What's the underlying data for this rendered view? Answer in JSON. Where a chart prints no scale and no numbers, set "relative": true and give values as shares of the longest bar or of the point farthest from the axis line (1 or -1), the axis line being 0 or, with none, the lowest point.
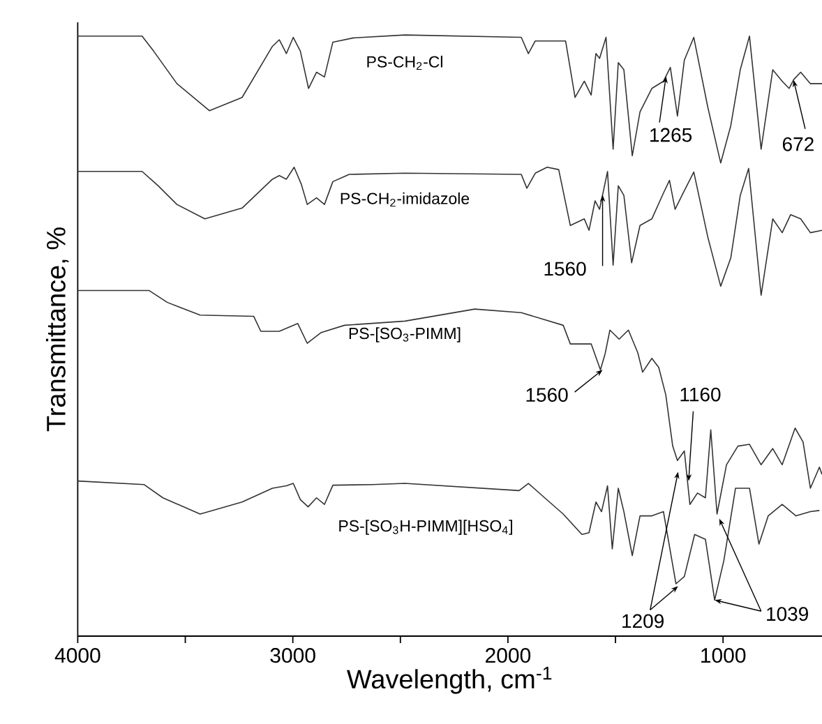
{
  "chart_data": {
    "type": "line",
    "relative": true,
    "xlabel": "Wavelength, cm$^{-1}$",
    "ylabel": "Transmittance, %",
    "xlim": [
      4000,
      540
    ],
    "xticks": [
      4000,
      {
        "value": 3500,
        "label": null
      },
      3000,
      {
        "value": 2500,
        "label": null
      },
      2000,
      {
        "value": 1500,
        "label": null
      },
      1000
    ],
    "series": [
      {
        "name": "PS-CH$_{2}$-Cl",
        "color": "#333333",
        "x": [
          4000,
          3701,
          3647,
          3539,
          3388,
          3236,
          3095,
          3063,
          3030,
          2998,
          2965,
          2927,
          2890,
          2853,
          2814,
          2719,
          2479,
          1938,
          1905,
          1873,
          1732,
          1688,
          1645,
          1613,
          1591,
          1574,
          1544,
          1511,
          1487,
          1461,
          1422,
          1386,
          1331,
          1277,
          1245,
          1212,
          1180,
          1136,
          1071,
          1011,
          964,
          920,
          877,
          823,
          769,
          725,
          693,
          671,
          639,
          594,
          540
        ],
        "values": [
          0.998,
          0.998,
          0.973,
          0.919,
          0.874,
          0.896,
          0.981,
          0.992,
          0.969,
          0.996,
          0.973,
          0.911,
          0.938,
          0.93,
          0.988,
          0.995,
          1.0,
          0.996,
          0.969,
          0.99,
          0.99,
          0.896,
          0.923,
          0.9,
          0.969,
          0.961,
          0.996,
          0.81,
          0.954,
          0.942,
          0.799,
          0.872,
          0.911,
          0.923,
          0.946,
          0.865,
          0.958,
          0.996,
          0.88,
          0.787,
          0.849,
          0.942,
          0.998,
          0.81,
          0.942,
          0.923,
          0.911,
          0.926,
          0.938,
          0.919,
          0.919
        ]
      },
      {
        "name": "PS-CH$_{2}$-imidazole",
        "color": "#333333",
        "x": [
          4000,
          3701,
          3626,
          3539,
          3409,
          3236,
          3095,
          3063,
          3030,
          2994,
          2961,
          2933,
          2890,
          2853,
          2814,
          2738,
          2479,
          1938,
          1912,
          1873,
          1818,
          1764,
          1710,
          1645,
          1623,
          1595,
          1574,
          1537,
          1511,
          1487,
          1461,
          1425,
          1386,
          1331,
          1277,
          1249,
          1223,
          1191,
          1136,
          1071,
          1011,
          964,
          920,
          881,
          823,
          769,
          725,
          686,
          639,
          594,
          540
        ],
        "values": [
          0.773,
          0.773,
          0.749,
          0.718,
          0.694,
          0.712,
          0.76,
          0.766,
          0.76,
          0.78,
          0.752,
          0.718,
          0.729,
          0.718,
          0.756,
          0.768,
          0.77,
          0.768,
          0.745,
          0.77,
          0.78,
          0.776,
          0.683,
          0.694,
          0.675,
          0.724,
          0.71,
          0.773,
          0.617,
          0.749,
          0.733,
          0.621,
          0.683,
          0.694,
          0.737,
          0.758,
          0.71,
          0.733,
          0.772,
          0.664,
          0.582,
          0.629,
          0.733,
          0.778,
          0.567,
          0.694,
          0.671,
          0.701,
          0.694,
          0.671,
          0.675
        ]
      },
      {
        "name": "PS-[SO$_{3}$-PIMM]",
        "color": "#333333",
        "x": [
          4000,
          3669,
          3583,
          3431,
          3182,
          3149,
          3063,
          2977,
          2933,
          2868,
          2760,
          2479,
          2154,
          1938,
          1743,
          1710,
          1613,
          1570,
          1548,
          1526,
          1483,
          1440,
          1396,
          1374,
          1331,
          1299,
          1266,
          1234,
          1212,
          1180,
          1154,
          1119,
          1082,
          1057,
          1028,
          984,
          931,
          877,
          823,
          769,
          725,
          665,
          628,
          594,
          552,
          540
        ],
        "values": [
          0.575,
          0.575,
          0.555,
          0.534,
          0.532,
          0.507,
          0.507,
          0.52,
          0.487,
          0.505,
          0.517,
          0.524,
          0.544,
          0.538,
          0.517,
          0.486,
          0.486,
          0.443,
          0.47,
          0.509,
          0.494,
          0.509,
          0.471,
          0.439,
          0.462,
          0.447,
          0.401,
          0.316,
          0.292,
          0.308,
          0.219,
          0.238,
          0.23,
          0.343,
          0.203,
          0.285,
          0.316,
          0.319,
          0.285,
          0.312,
          0.285,
          0.346,
          0.323,
          0.246,
          0.281,
          0.269
        ]
      },
      {
        "name": "PS-[SO$_{3}$H-PIMM][HSO$_{4}$]",
        "color": "#333333",
        "x": [
          4000,
          3691,
          3604,
          3431,
          3236,
          3095,
          3030,
          2998,
          2965,
          2929,
          2890,
          2853,
          2814,
          2630,
          2479,
          1948,
          1905,
          1829,
          1743,
          1656,
          1623,
          1591,
          1565,
          1537,
          1515,
          1487,
          1461,
          1422,
          1386,
          1331,
          1277,
          1219,
          1180,
          1132,
          1082,
          1039,
          996,
          942,
          877,
          833,
          790,
          725,
          661,
          594,
          552
        ],
        "values": [
          0.258,
          0.252,
          0.23,
          0.203,
          0.223,
          0.246,
          0.25,
          0.254,
          0.227,
          0.215,
          0.23,
          0.219,
          0.251,
          0.252,
          0.254,
          0.242,
          0.254,
          0.23,
          0.203,
          0.169,
          0.172,
          0.223,
          0.207,
          0.25,
          0.145,
          0.246,
          0.207,
          0.134,
          0.2,
          0.2,
          0.207,
          0.087,
          0.099,
          0.169,
          0.161,
          0.06,
          0.126,
          0.246,
          0.246,
          0.153,
          0.2,
          0.219,
          0.2,
          0.207,
          0.209
        ]
      }
    ],
    "annotations": [
      {
        "text": "1265",
        "x": 1265,
        "y": 0.931
      },
      {
        "text": "672",
        "x": 672,
        "y": 0.925
      },
      {
        "text": "1560",
        "x": 1560,
        "y": 0.734
      },
      {
        "text": "1560",
        "x": 1560,
        "y": 0.443
      },
      {
        "text": "1160",
        "x": 1160,
        "y": 0.258
      },
      {
        "text": "1209",
        "x": 1209,
        "y": 0.083
      },
      {
        "text": "1039",
        "x": 1039,
        "y": 0.06
      }
    ]
  }
}
